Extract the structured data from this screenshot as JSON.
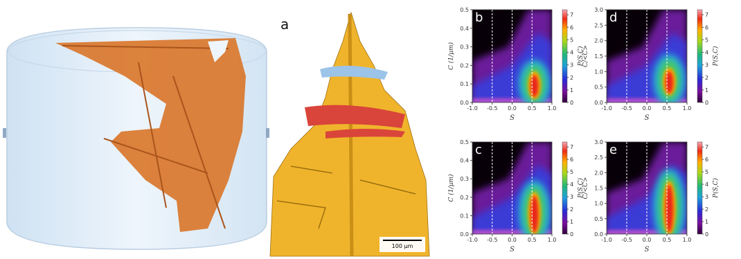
{
  "panel_a": {
    "label": "a",
    "scale_bar": "100 µm"
  },
  "chart_data": [
    {
      "type": "heatmap",
      "label": "b",
      "xlabel": "S",
      "ylabel": "C (1/µm)",
      "colorbar_label": "P(S,C)",
      "xlim": [
        -1,
        1
      ],
      "ylim": [
        0,
        0.5
      ],
      "xticks": [
        {
          "value": -1,
          "label": "-1.0"
        },
        -0.5,
        {
          "value": 0,
          "label": "0.0"
        },
        0.5,
        {
          "value": 1,
          "label": "1.0"
        }
      ],
      "yticks": [
        {
          "value": 0,
          "label": "0.0"
        },
        0.1,
        0.2,
        0.3,
        0.4,
        0.5
      ],
      "vlines": [
        -0.5,
        0,
        0.5
      ],
      "clim": [
        0,
        7.4
      ],
      "cticks": [
        0,
        1,
        2,
        3,
        4,
        5,
        6,
        7
      ]
    },
    {
      "type": "heatmap",
      "label": "c",
      "xlabel": "S",
      "ylabel": "C (1/µm)",
      "colorbar_label": "P(S,C)",
      "xlim": [
        -1,
        1
      ],
      "ylim": [
        0,
        0.5
      ],
      "xticks": [
        {
          "value": -1,
          "label": "-1.0"
        },
        -0.5,
        {
          "value": 0,
          "label": "0.0"
        },
        0.5,
        {
          "value": 1,
          "label": "1.0"
        }
      ],
      "yticks": [
        {
          "value": 0,
          "label": "0.0"
        },
        0.1,
        0.2,
        0.3,
        0.4,
        0.5
      ],
      "vlines": [
        -0.5,
        0,
        0.5
      ],
      "clim": [
        0,
        7.4
      ],
      "cticks": [
        0,
        1,
        2,
        3,
        4,
        5,
        6,
        7
      ]
    },
    {
      "type": "heatmap",
      "label": "d",
      "xlabel": "S",
      "ylabel": "C/<C>",
      "colorbar_label": "P(S,C)",
      "xlim": [
        -1,
        1
      ],
      "ylim": [
        0,
        3
      ],
      "xticks": [
        {
          "value": -1,
          "label": "-1.0"
        },
        -0.5,
        {
          "value": 0,
          "label": "0.0"
        },
        0.5,
        {
          "value": 1,
          "label": "1.0"
        }
      ],
      "yticks": [
        {
          "value": 0,
          "label": "0.0"
        },
        0.5,
        {
          "value": 1,
          "label": "1.0"
        },
        1.5,
        {
          "value": 2,
          "label": "2.0"
        },
        2.5,
        {
          "value": 3,
          "label": "3.0"
        }
      ],
      "vlines": [
        -0.5,
        0,
        0.5
      ],
      "clim": [
        0,
        7.4
      ],
      "cticks": [
        0,
        1,
        2,
        3,
        4,
        5,
        6,
        7
      ]
    },
    {
      "type": "heatmap",
      "label": "e",
      "xlabel": "S",
      "ylabel": "C/<C>",
      "colorbar_label": "P(S,C)",
      "xlim": [
        -1,
        1
      ],
      "ylim": [
        0,
        3
      ],
      "xticks": [
        {
          "value": -1,
          "label": "-1.0"
        },
        -0.5,
        {
          "value": 0,
          "label": "0.0"
        },
        0.5,
        {
          "value": 1,
          "label": "1.0"
        }
      ],
      "yticks": [
        {
          "value": 0,
          "label": "0.0"
        },
        0.5,
        {
          "value": 1,
          "label": "1.0"
        },
        1.5,
        {
          "value": 2,
          "label": "2.0"
        },
        2.5,
        {
          "value": 3,
          "label": "3.0"
        }
      ],
      "vlines": [
        -0.5,
        0,
        0.5
      ],
      "clim": [
        0,
        7.4
      ],
      "cticks": [
        0,
        1,
        2,
        3,
        4,
        5,
        6,
        7
      ]
    }
  ]
}
